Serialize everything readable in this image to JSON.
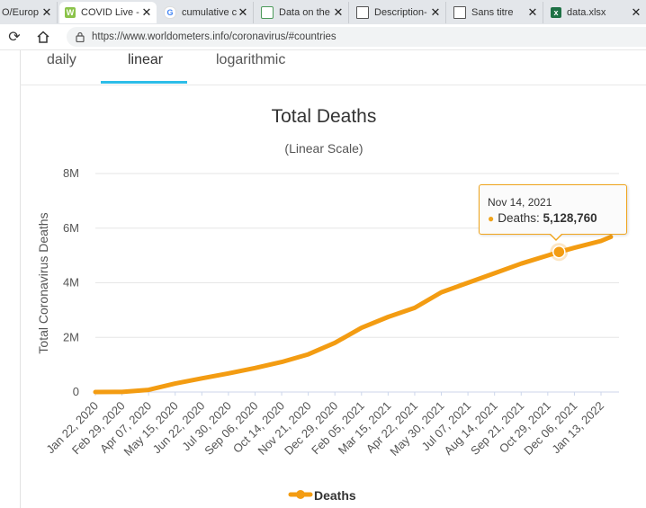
{
  "browser": {
    "tabs": [
      {
        "title": "O/Europ",
        "icon": "page-icon"
      },
      {
        "title": "COVID Live -",
        "icon": "worldometers-icon"
      },
      {
        "title": "cumulative c",
        "icon": "google-icon"
      },
      {
        "title": "Data on the",
        "icon": "document-icon"
      },
      {
        "title": "Description-",
        "icon": "page-icon"
      },
      {
        "title": "Sans titre",
        "icon": "page-icon"
      },
      {
        "title": "data.xlsx",
        "icon": "excel-icon"
      }
    ],
    "url": "https://www.worldometers.info/coronavirus/#countries"
  },
  "chart_tabs": [
    "daily",
    "linear",
    "logarithmic"
  ],
  "active_tab": "linear",
  "tooltip": {
    "date": "Nov 14, 2021",
    "series": "Deaths",
    "value": "5,128,760"
  },
  "colors": {
    "series": "#f39c12",
    "accent": "#2dbde8",
    "tooltip_border": "#f0a41c"
  },
  "chart_data": {
    "type": "line",
    "title": "Total Deaths",
    "subtitle": "(Linear Scale)",
    "ylabel": "Total Coronavirus Deaths",
    "xlabel": "",
    "ylim": [
      0,
      8000000
    ],
    "yticks": [
      0,
      2000000,
      4000000,
      6000000,
      8000000
    ],
    "ytick_labels": [
      "0",
      "2M",
      "4M",
      "6M",
      "8M"
    ],
    "xtick_labels": [
      "Jan 22, 2020",
      "Feb 29, 2020",
      "Apr 07, 2020",
      "May 15, 2020",
      "Jun 22, 2020",
      "Jul 30, 2020",
      "Sep 06, 2020",
      "Oct 14, 2020",
      "Nov 21, 2020",
      "Dec 29, 2020",
      "Feb 05, 2021",
      "Mar 15, 2021",
      "Apr 22, 2021",
      "May 30, 2021",
      "Jul 07, 2021",
      "Aug 14, 2021",
      "Sep 21, 2021",
      "Oct 29, 2021",
      "Dec 06, 2021",
      "Jan 13, 2022"
    ],
    "grid": true,
    "legend": "bottom",
    "series": [
      {
        "name": "Deaths",
        "x": [
          "Jan 22, 2020",
          "Feb 29, 2020",
          "Apr 07, 2020",
          "May 15, 2020",
          "Jun 22, 2020",
          "Jul 30, 2020",
          "Sep 06, 2020",
          "Oct 14, 2020",
          "Nov 21, 2020",
          "Dec 29, 2020",
          "Feb 05, 2021",
          "Mar 15, 2021",
          "Apr 22, 2021",
          "May 30, 2021",
          "Jul 07, 2021",
          "Aug 14, 2021",
          "Sep 21, 2021",
          "Oct 29, 2021",
          "Nov 14, 2021",
          "Dec 06, 2021",
          "Jan 13, 2022",
          "Jan 27, 2022"
        ],
        "values": [
          20,
          3000,
          80000,
          310000,
          500000,
          680000,
          880000,
          1100000,
          1380000,
          1800000,
          2350000,
          2750000,
          3080000,
          3650000,
          4000000,
          4350000,
          4700000,
          5000000,
          5128760,
          5280000,
          5530000,
          5680000
        ]
      }
    ],
    "highlight": {
      "x": "Nov 14, 2021",
      "value": 5128760
    }
  }
}
